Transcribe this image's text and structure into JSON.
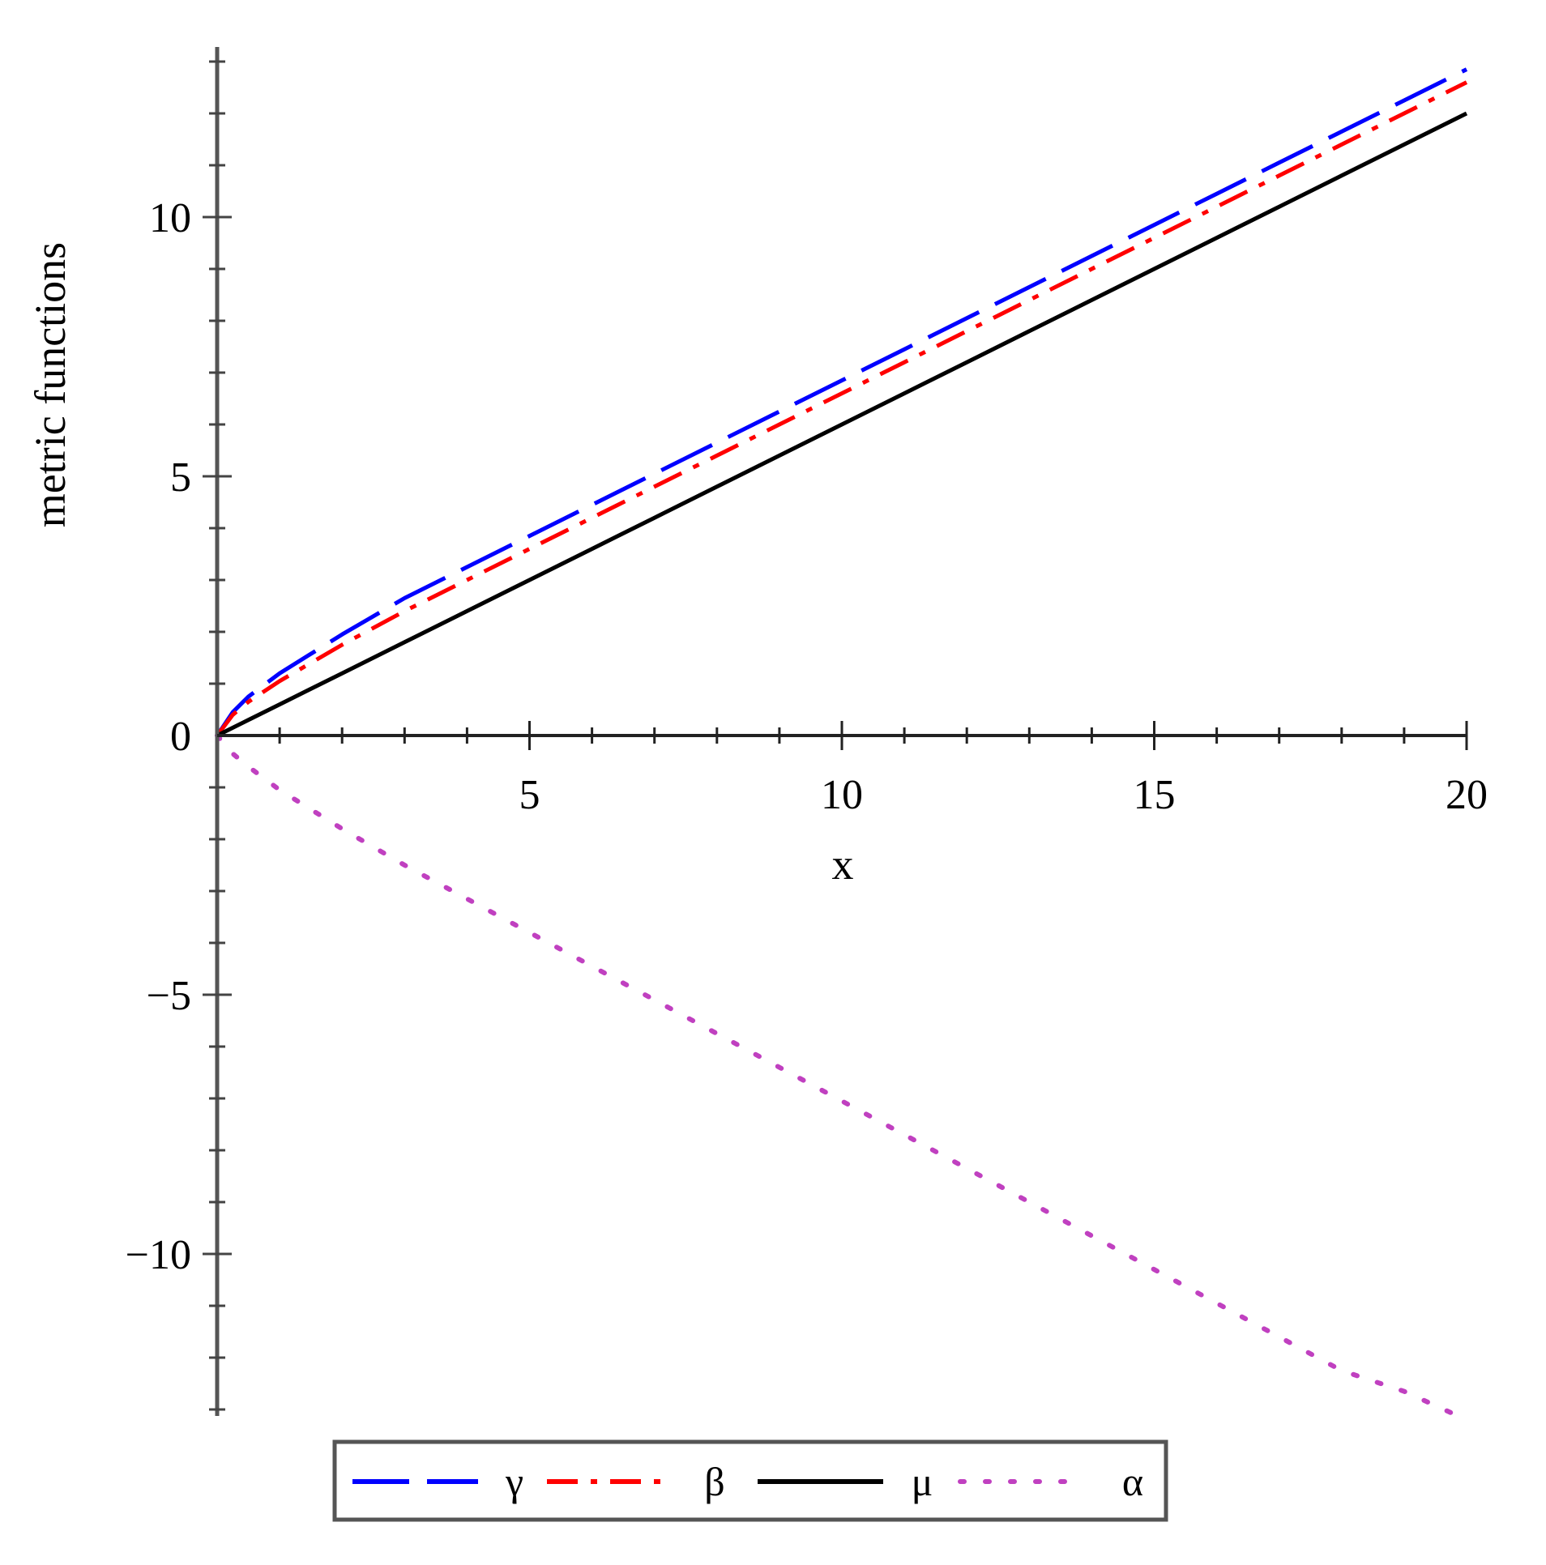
{
  "chart_data": {
    "type": "line",
    "title": "",
    "xlabel": "x",
    "ylabel": "metric functions",
    "xlim": [
      0,
      20
    ],
    "ylim": [
      -13.2,
      13.2
    ],
    "x_ticks": [
      "5",
      "10",
      "15",
      "20"
    ],
    "y_ticks": [
      "-10",
      "-5",
      "0",
      "5",
      "10"
    ],
    "x_tick_values": [
      5,
      10,
      15,
      20
    ],
    "y_tick_values": [
      -10,
      -5,
      0,
      5,
      10
    ],
    "grid": false,
    "legend_position": "bottom",
    "x": [
      0,
      0.25,
      0.5,
      1,
      2,
      3,
      4,
      5,
      6,
      7,
      8,
      9,
      10,
      11,
      12,
      13,
      14,
      15,
      16,
      17,
      18,
      19,
      20
    ],
    "series": [
      {
        "name": "γ",
        "color": "#0000ff",
        "style": "longdash",
        "values": [
          0,
          0.45,
          0.75,
          1.2,
          1.95,
          2.65,
          3.25,
          3.85,
          4.45,
          5.05,
          5.65,
          6.25,
          6.85,
          7.45,
          8.05,
          8.65,
          9.25,
          9.85,
          10.45,
          11.05,
          11.65,
          12.25,
          12.85
        ]
      },
      {
        "name": "β",
        "color": "#ff0000",
        "style": "dashdot",
        "values": [
          0,
          0.4,
          0.65,
          1.05,
          1.75,
          2.4,
          3.0,
          3.6,
          4.2,
          4.8,
          5.4,
          6.0,
          6.6,
          7.2,
          7.8,
          8.4,
          9.0,
          9.6,
          10.2,
          10.8,
          11.4,
          12.0,
          12.6
        ]
      },
      {
        "name": "μ",
        "color": "#000000",
        "style": "solid",
        "values": [
          0,
          0.15,
          0.3,
          0.6,
          1.2,
          1.8,
          2.4,
          3.0,
          3.6,
          4.2,
          4.8,
          5.4,
          6.0,
          6.6,
          7.2,
          7.8,
          8.4,
          9.0,
          9.6,
          10.2,
          10.8,
          11.4,
          12.0
        ]
      },
      {
        "name": "α",
        "color": "#c040c0",
        "style": "dotted",
        "values": [
          0,
          -0.35,
          -0.6,
          -1.05,
          -1.8,
          -2.5,
          -3.15,
          -3.8,
          -4.45,
          -5.1,
          -5.75,
          -6.4,
          -7.05,
          -7.7,
          -8.35,
          -9.0,
          -9.65,
          -10.3,
          -10.95,
          -11.6,
          -12.25,
          -12.65,
          -13.2
        ]
      }
    ]
  }
}
